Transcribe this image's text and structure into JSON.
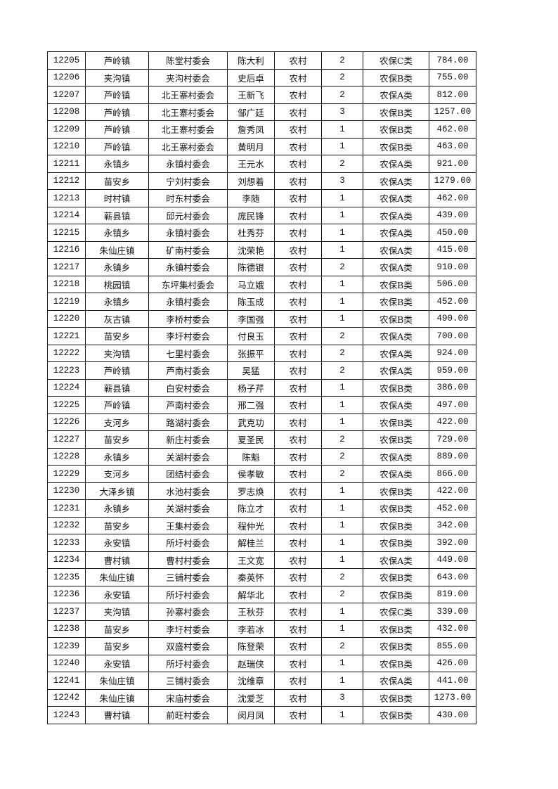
{
  "rows": [
    [
      "12205",
      "芦岭镇",
      "陈堂村委会",
      "陈大利",
      "农村",
      "2",
      "农保C类",
      "784.00"
    ],
    [
      "12206",
      "夹沟镇",
      "夹沟村委会",
      "史后卓",
      "农村",
      "2",
      "农保B类",
      "755.00"
    ],
    [
      "12207",
      "芦岭镇",
      "北王寨村委会",
      "王新飞",
      "农村",
      "2",
      "农保A类",
      "812.00"
    ],
    [
      "12208",
      "芦岭镇",
      "北王寨村委会",
      "邹广廷",
      "农村",
      "3",
      "农保B类",
      "1257.00"
    ],
    [
      "12209",
      "芦岭镇",
      "北王寨村委会",
      "詹秀凤",
      "农村",
      "1",
      "农保B类",
      "462.00"
    ],
    [
      "12210",
      "芦岭镇",
      "北王寨村委会",
      "黄明月",
      "农村",
      "1",
      "农保B类",
      "463.00"
    ],
    [
      "12211",
      "永镇乡",
      "永镇村委会",
      "王元水",
      "农村",
      "2",
      "农保A类",
      "921.00"
    ],
    [
      "12212",
      "苗安乡",
      "宁刘村委会",
      "刘想着",
      "农村",
      "3",
      "农保A类",
      "1279.00"
    ],
    [
      "12213",
      "时村镇",
      "时东村委会",
      "李随",
      "农村",
      "1",
      "农保A类",
      "462.00"
    ],
    [
      "12214",
      "蕲县镇",
      "邱元村委会",
      "庞民锋",
      "农村",
      "1",
      "农保A类",
      "439.00"
    ],
    [
      "12215",
      "永镇乡",
      "永镇村委会",
      "杜秀芬",
      "农村",
      "1",
      "农保A类",
      "450.00"
    ],
    [
      "12216",
      "朱仙庄镇",
      "矿南村委会",
      "沈荣艳",
      "农村",
      "1",
      "农保A类",
      "415.00"
    ],
    [
      "12217",
      "永镇乡",
      "永镇村委会",
      "陈德银",
      "农村",
      "2",
      "农保A类",
      "910.00"
    ],
    [
      "12218",
      "桃园镇",
      "东坪集村委会",
      "马立娥",
      "农村",
      "1",
      "农保B类",
      "506.00"
    ],
    [
      "12219",
      "永镇乡",
      "永镇村委会",
      "陈玉成",
      "农村",
      "1",
      "农保B类",
      "452.00"
    ],
    [
      "12220",
      "灰古镇",
      "李桥村委会",
      "李国强",
      "农村",
      "1",
      "农保B类",
      "490.00"
    ],
    [
      "12221",
      "苗安乡",
      "李圩村委会",
      "付良玉",
      "农村",
      "2",
      "农保A类",
      "700.00"
    ],
    [
      "12222",
      "夹沟镇",
      "七里村委会",
      "张振平",
      "农村",
      "2",
      "农保A类",
      "924.00"
    ],
    [
      "12223",
      "芦岭镇",
      "芦南村委会",
      "吴猛",
      "农村",
      "2",
      "农保A类",
      "959.00"
    ],
    [
      "12224",
      "蕲县镇",
      "白安村委会",
      "杨子芹",
      "农村",
      "1",
      "农保B类",
      "386.00"
    ],
    [
      "12225",
      "芦岭镇",
      "芦南村委会",
      "邢二强",
      "农村",
      "1",
      "农保A类",
      "497.00"
    ],
    [
      "12226",
      "支河乡",
      "路湖村委会",
      "武克功",
      "农村",
      "1",
      "农保B类",
      "422.00"
    ],
    [
      "12227",
      "苗安乡",
      "新庄村委会",
      "夏圣民",
      "农村",
      "2",
      "农保B类",
      "729.00"
    ],
    [
      "12228",
      "永镇乡",
      "关湖村委会",
      "陈魁",
      "农村",
      "2",
      "农保A类",
      "889.00"
    ],
    [
      "12229",
      "支河乡",
      "团结村委会",
      "侯孝敏",
      "农村",
      "2",
      "农保A类",
      "866.00"
    ],
    [
      "12230",
      "大泽乡镇",
      "水池村委会",
      "罗志焕",
      "农村",
      "1",
      "农保B类",
      "422.00"
    ],
    [
      "12231",
      "永镇乡",
      "关湖村委会",
      "陈立才",
      "农村",
      "1",
      "农保B类",
      "452.00"
    ],
    [
      "12232",
      "苗安乡",
      "王集村委会",
      "程仲光",
      "农村",
      "1",
      "农保B类",
      "342.00"
    ],
    [
      "12233",
      "永安镇",
      "所圩村委会",
      "解桂兰",
      "农村",
      "1",
      "农保B类",
      "392.00"
    ],
    [
      "12234",
      "曹村镇",
      "曹村村委会",
      "王文宽",
      "农村",
      "1",
      "农保A类",
      "449.00"
    ],
    [
      "12235",
      "朱仙庄镇",
      "三铺村委会",
      "秦英怀",
      "农村",
      "2",
      "农保B类",
      "643.00"
    ],
    [
      "12236",
      "永安镇",
      "所圩村委会",
      "解华北",
      "农村",
      "2",
      "农保B类",
      "819.00"
    ],
    [
      "12237",
      "夹沟镇",
      "孙寨村委会",
      "王秋芬",
      "农村",
      "1",
      "农保C类",
      "339.00"
    ],
    [
      "12238",
      "苗安乡",
      "李圩村委会",
      "李若冰",
      "农村",
      "1",
      "农保B类",
      "432.00"
    ],
    [
      "12239",
      "苗安乡",
      "双盛村委会",
      "陈登荣",
      "农村",
      "2",
      "农保B类",
      "855.00"
    ],
    [
      "12240",
      "永安镇",
      "所圩村委会",
      "赵瑞侠",
      "农村",
      "1",
      "农保B类",
      "426.00"
    ],
    [
      "12241",
      "朱仙庄镇",
      "三铺村委会",
      "沈维章",
      "农村",
      "1",
      "农保A类",
      "441.00"
    ],
    [
      "12242",
      "朱仙庄镇",
      "宋庙村委会",
      "沈爱芝",
      "农村",
      "3",
      "农保B类",
      "1273.00"
    ],
    [
      "12243",
      "曹村镇",
      "前旺村委会",
      "闵月凤",
      "农村",
      "1",
      "农保B类",
      "430.00"
    ]
  ]
}
